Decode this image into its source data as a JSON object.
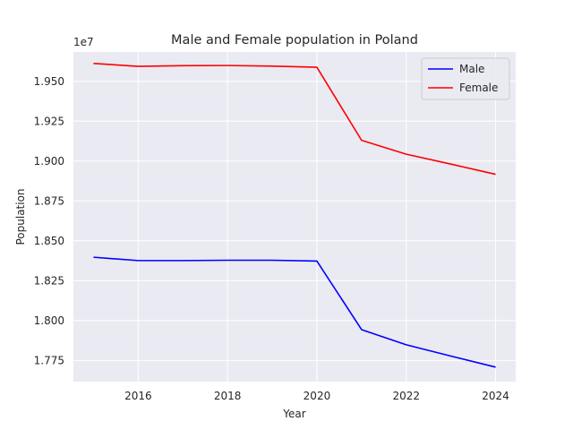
{
  "chart_data": {
    "type": "line",
    "title": "Male and Female population in Poland",
    "xlabel": "Year",
    "ylabel": "Population",
    "offset_label": "1e7",
    "xlim": [
      2014.55,
      2024.45
    ],
    "ylim": [
      17.617,
      19.684
    ],
    "x_ticks": [
      2016,
      2018,
      2020,
      2022,
      2024
    ],
    "x_tick_labels": [
      "2016",
      "2018",
      "2020",
      "2022",
      "2024"
    ],
    "y_ticks": [
      17.75,
      18.0,
      18.25,
      18.5,
      18.75,
      19.0,
      19.25,
      19.5
    ],
    "y_tick_labels": [
      "1.775",
      "1.800",
      "1.825",
      "1.850",
      "1.875",
      "1.900",
      "1.925",
      "1.950"
    ],
    "x": [
      2015,
      2016,
      2017,
      2018,
      2019,
      2020,
      2021,
      2022,
      2023,
      2024
    ],
    "series": [
      {
        "name": "Male",
        "color": "#0000ff",
        "values": [
          18.397,
          18.376,
          18.376,
          18.378,
          18.378,
          18.373,
          17.943,
          17.848,
          17.777,
          17.708
        ]
      },
      {
        "name": "Female",
        "color": "#ff0000",
        "values": [
          19.612,
          19.594,
          19.598,
          19.599,
          19.595,
          19.588,
          19.13,
          19.043,
          18.981,
          18.917
        ]
      }
    ],
    "grid": true,
    "legend_position": "top-right"
  }
}
